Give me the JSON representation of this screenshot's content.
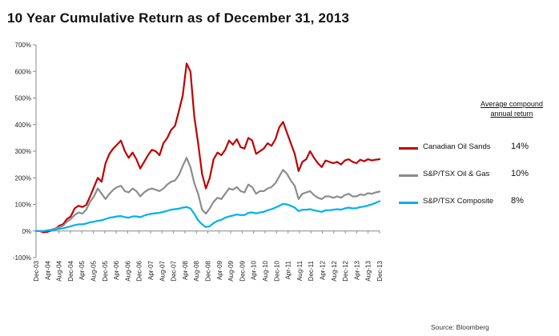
{
  "chart_data": {
    "type": "line",
    "title": "10 Year Cumulative Return as of December 31, 2013",
    "xlabel": "",
    "ylabel": "",
    "ylim": [
      -100,
      700
    ],
    "y_ticks": [
      "-100%",
      "0%",
      "100%",
      "200%",
      "300%",
      "400%",
      "500%",
      "600%",
      "700%"
    ],
    "y_tick_values": [
      -100,
      0,
      100,
      200,
      300,
      400,
      500,
      600,
      700
    ],
    "x_tick_labels": [
      "Dec-03",
      "Apr-04",
      "Aug-04",
      "Dec-04",
      "Apr-05",
      "Aug-05",
      "Dec-05",
      "Apr-06",
      "Aug-06",
      "Dec-06",
      "Apr-07",
      "Aug-07",
      "Dec-07",
      "Apr-08",
      "Aug-08",
      "Dec-08",
      "Apr-09",
      "Aug-09",
      "Dec-09",
      "Apr-10",
      "Aug-10",
      "Dec-10",
      "Apr-11",
      "Aug-11",
      "Dec-11",
      "Apr-12",
      "Aug-12",
      "Dec-12",
      "Apr-13",
      "Aug-13",
      "Dec-13"
    ],
    "grid": false,
    "legend_placement": "right",
    "legend_header": [
      "Average compound",
      "annual return"
    ],
    "series": [
      {
        "name": "Canadian Oil Sands",
        "color": "#c00000",
        "annual_return": "14%",
        "values": [
          0,
          0,
          -5,
          -3,
          2,
          8,
          20,
          25,
          45,
          55,
          85,
          95,
          90,
          98,
          130,
          165,
          200,
          185,
          255,
          290,
          310,
          325,
          340,
          300,
          275,
          295,
          270,
          235,
          260,
          285,
          305,
          300,
          285,
          330,
          350,
          380,
          395,
          450,
          510,
          630,
          600,
          430,
          330,
          215,
          160,
          200,
          270,
          295,
          285,
          305,
          340,
          325,
          345,
          315,
          310,
          350,
          340,
          290,
          300,
          310,
          330,
          320,
          345,
          390,
          410,
          370,
          330,
          290,
          225,
          260,
          270,
          300,
          275,
          255,
          240,
          265,
          260,
          255,
          260,
          250,
          265,
          270,
          260,
          255,
          268,
          262,
          270,
          265,
          268,
          270
        ]
      },
      {
        "name": "S&P/TSX Oil & Gas",
        "color": "#8c8c8c",
        "annual_return": "10%",
        "values": [
          0,
          0,
          0,
          3,
          5,
          10,
          15,
          20,
          35,
          45,
          60,
          70,
          65,
          80,
          110,
          130,
          160,
          140,
          120,
          140,
          155,
          165,
          170,
          150,
          145,
          160,
          150,
          130,
          145,
          155,
          160,
          155,
          150,
          160,
          175,
          185,
          190,
          210,
          245,
          275,
          240,
          180,
          140,
          80,
          65,
          85,
          110,
          125,
          120,
          140,
          160,
          155,
          165,
          150,
          145,
          175,
          165,
          140,
          150,
          150,
          160,
          165,
          180,
          205,
          230,
          215,
          190,
          170,
          120,
          140,
          145,
          150,
          135,
          125,
          120,
          130,
          130,
          125,
          130,
          125,
          135,
          140,
          130,
          130,
          138,
          135,
          142,
          140,
          145,
          148
        ]
      },
      {
        "name": "S&P/TSX Composite",
        "color": "#00b0f0",
        "annual_return": "8%",
        "values": [
          0,
          0,
          0,
          2,
          3,
          5,
          8,
          10,
          14,
          18,
          22,
          25,
          25,
          28,
          33,
          35,
          38,
          40,
          45,
          50,
          52,
          55,
          56,
          52,
          50,
          55,
          55,
          52,
          58,
          62,
          65,
          67,
          68,
          72,
          76,
          80,
          82,
          84,
          88,
          90,
          85,
          65,
          40,
          25,
          15,
          18,
          30,
          38,
          42,
          50,
          55,
          58,
          62,
          60,
          60,
          68,
          70,
          66,
          70,
          72,
          78,
          82,
          88,
          95,
          102,
          100,
          95,
          88,
          75,
          80,
          80,
          82,
          78,
          75,
          72,
          78,
          78,
          80,
          82,
          80,
          85,
          88,
          85,
          86,
          90,
          92,
          96,
          100,
          106,
          112
        ]
      }
    ]
  },
  "source_note": "Source:  Bloomberg"
}
